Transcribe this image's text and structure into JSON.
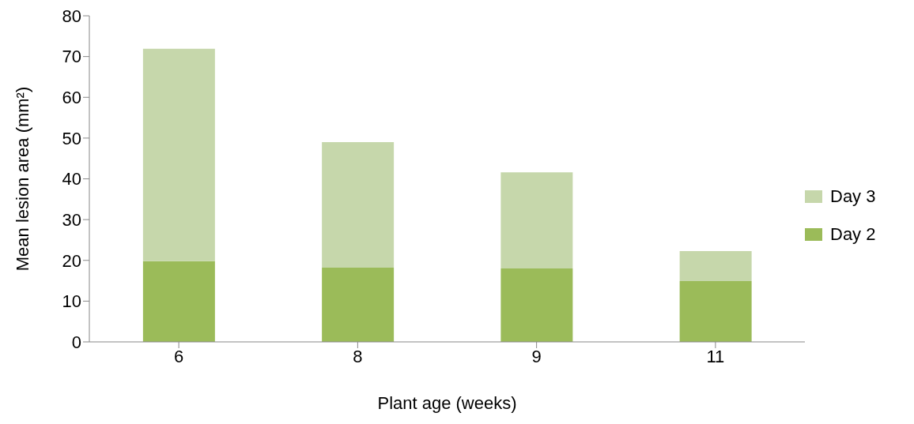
{
  "chart_data": {
    "type": "bar",
    "stacked": true,
    "xlabel": "Plant age (weeks)",
    "ylabel": "Mean lesion area (mm²)",
    "categories": [
      "6",
      "8",
      "9",
      "11"
    ],
    "series": [
      {
        "name": "Day 2",
        "color": "#9bbb59",
        "values": [
          19.8,
          18.2,
          18.0,
          14.9
        ]
      },
      {
        "name": "Day 3",
        "color": "#c6d7ab",
        "values": [
          52.1,
          30.8,
          23.6,
          7.4
        ]
      }
    ],
    "ylim": [
      0,
      80
    ],
    "yticks": [
      0,
      10,
      20,
      30,
      40,
      50,
      60,
      70,
      80
    ],
    "grid": false,
    "legend": "right"
  }
}
